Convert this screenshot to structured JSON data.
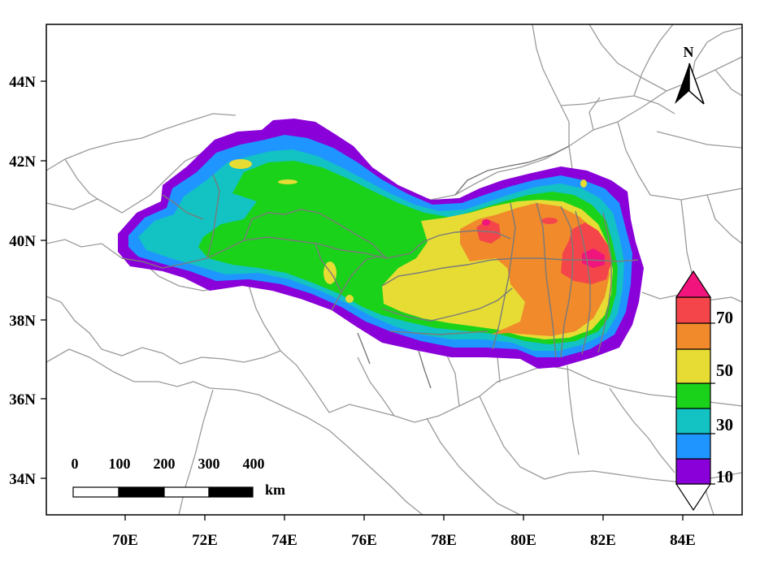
{
  "map": {
    "x_ticks": [
      "70E",
      "72E",
      "74E",
      "76E",
      "78E",
      "80E",
      "82E",
      "84E"
    ],
    "y_ticks": [
      "44N",
      "42N",
      "40N",
      "38N",
      "36N",
      "34N"
    ],
    "north_arrow_label": "N",
    "scale_bar": {
      "labels": [
        "0",
        "100",
        "200",
        "300",
        "400"
      ],
      "unit": "km"
    },
    "colorbar": {
      "labels": [
        "70",
        "50",
        "30",
        "10"
      ],
      "colors": [
        "#8a00d9",
        "#1f96ff",
        "#13c2c2",
        "#1ad21a",
        "#e6dc34",
        "#f08a2b",
        "#f4464a",
        "#f0147c"
      ]
    }
  }
}
